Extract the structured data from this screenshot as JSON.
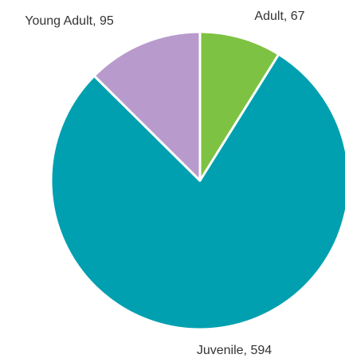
{
  "chart_data": {
    "type": "pie",
    "slices": [
      {
        "name": "Adult",
        "value": 67,
        "label": "Adult, 67",
        "color": "#7dc242"
      },
      {
        "name": "Juvenile",
        "value": 594,
        "label": "Juvenile,  594",
        "color": "#00a0b0"
      },
      {
        "name": "Young Adult",
        "value": 95,
        "label": "Young Adult, 95",
        "color": "#b89bcc"
      }
    ],
    "start_angle_deg": 0,
    "direction": "clockwise",
    "slice_border_color": "#ffffff"
  }
}
